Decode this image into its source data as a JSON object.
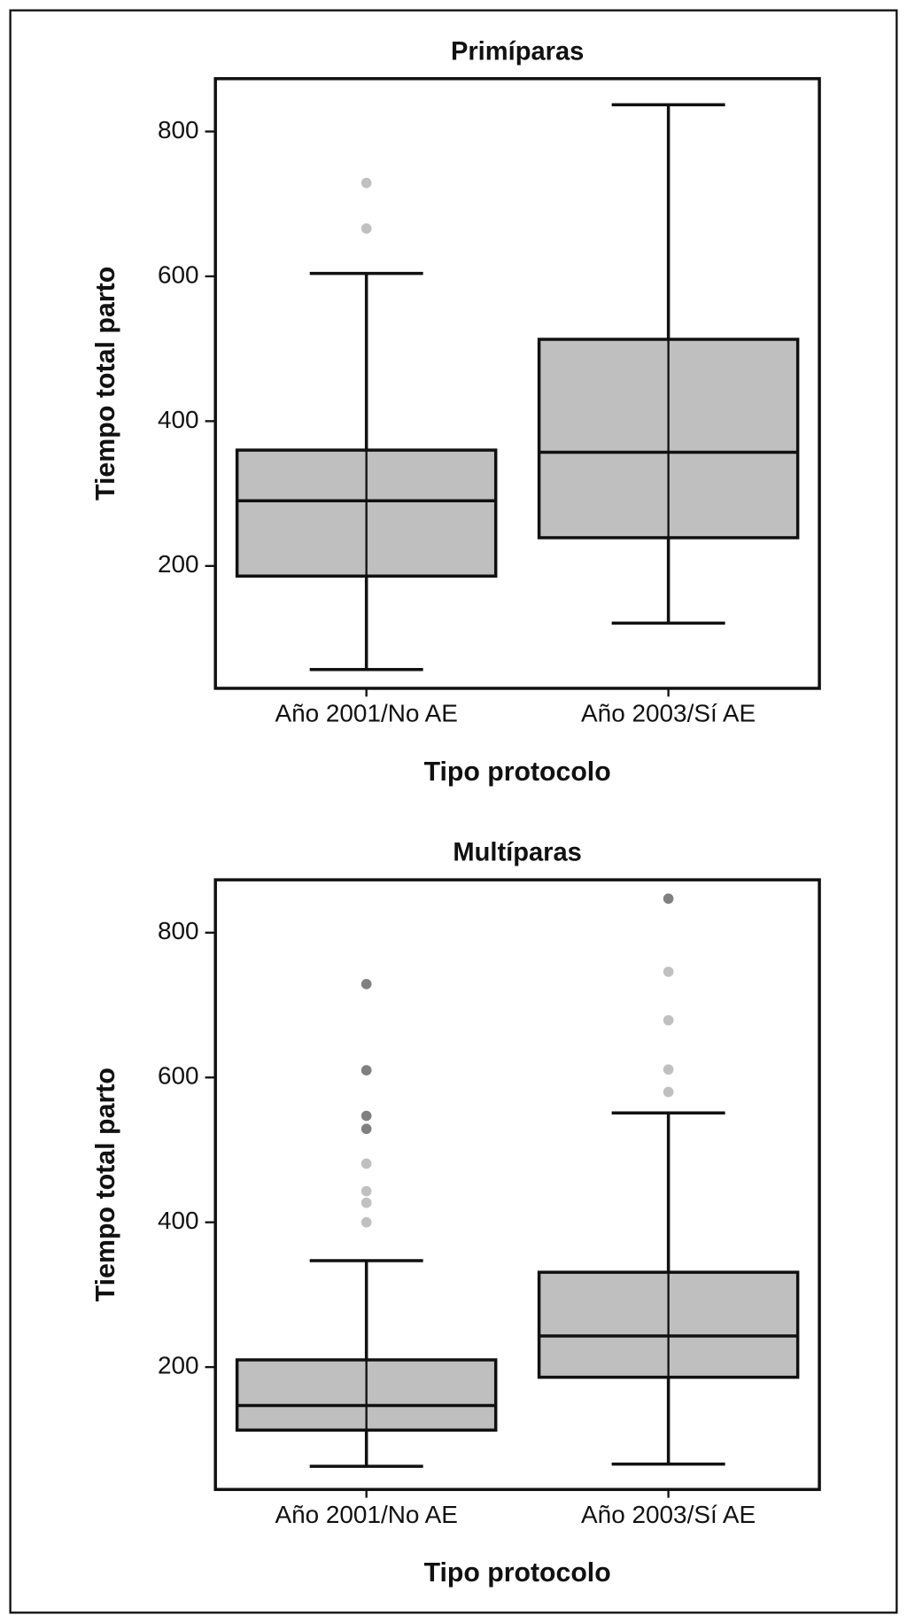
{
  "chart_data": [
    {
      "type": "box",
      "title": "Primíparas",
      "xlabel": "Tipo protocolo",
      "ylabel": "Tiempo total parto",
      "categories": [
        "Año 2001/No AE",
        "Año 2003/Sí AE"
      ],
      "color": "#bfbfbf",
      "boxes": [
        {
          "whislo": 57,
          "q1": 186,
          "med": 290,
          "q3": 360,
          "whishi": 604,
          "outliers": [
            729,
            666
          ],
          "outlier_colors": [
            "#c0c0c0",
            "#c0c0c0"
          ]
        },
        {
          "whislo": 121,
          "q1": 239,
          "med": 357,
          "q3": 513,
          "whishi": 837,
          "outliers": [],
          "outlier_colors": []
        }
      ],
      "ylim": [
        31,
        873
      ],
      "yticks": [
        200,
        400,
        600,
        800
      ]
    },
    {
      "type": "box",
      "title": "Multíparas",
      "xlabel": "Tipo protocolo",
      "ylabel": "Tiempo total parto",
      "categories": [
        "Año 2001/No AE",
        "Año 2003/Sí AE"
      ],
      "color": "#bfbfbf",
      "boxes": [
        {
          "whislo": 63,
          "q1": 113,
          "med": 147,
          "q3": 210,
          "whishi": 347,
          "outliers": [
            729,
            610,
            547,
            529,
            481,
            443,
            427,
            400
          ],
          "outlier_colors": [
            "#808080",
            "#808080",
            "#808080",
            "#808080",
            "#c0c0c0",
            "#c0c0c0",
            "#c0c0c0",
            "#c0c0c0"
          ]
        },
        {
          "whislo": 66,
          "q1": 186,
          "med": 243,
          "q3": 331,
          "whishi": 551,
          "outliers": [
            847,
            746,
            679,
            611,
            580
          ],
          "outlier_colors": [
            "#808080",
            "#c0c0c0",
            "#c0c0c0",
            "#c0c0c0",
            "#c0c0c0"
          ]
        }
      ],
      "ylim": [
        31,
        873
      ],
      "yticks": [
        200,
        400,
        600,
        800
      ]
    }
  ]
}
